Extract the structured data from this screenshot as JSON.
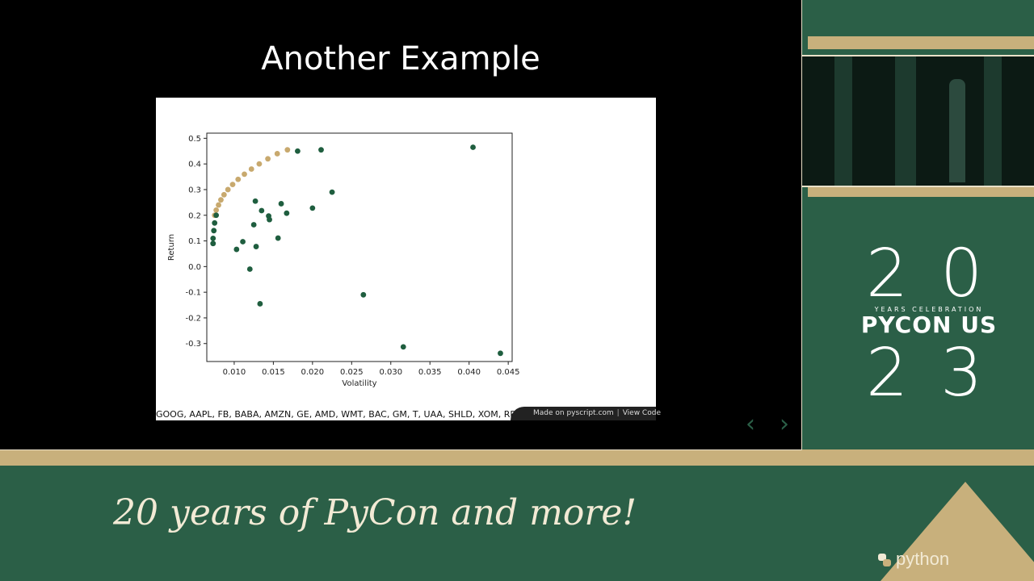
{
  "slide": {
    "title": "Another Example"
  },
  "figure": {
    "ticker_text": "GOOG, AAPL, FB, BABA, AMZN, GE, AMD, WMT, BAC, GM, T, UAA, SHLD, XOM, RRC, B",
    "badge_made_on": "Made on pyscript.com",
    "badge_view_code": "View Code"
  },
  "chart_data": {
    "type": "scatter",
    "xlabel": "Volatility",
    "ylabel": "Return",
    "xlim": [
      0.0065,
      0.0455
    ],
    "ylim": [
      -0.37,
      0.52
    ],
    "xticks": [
      0.01,
      0.015,
      0.02,
      0.025,
      0.03,
      0.035,
      0.04,
      0.045
    ],
    "xtick_labels": [
      "0.010",
      "0.015",
      "0.020",
      "0.025",
      "0.030",
      "0.035",
      "0.040",
      "0.045"
    ],
    "yticks": [
      -0.3,
      -0.2,
      -0.1,
      0.0,
      0.1,
      0.2,
      0.3,
      0.4,
      0.5
    ],
    "ytick_labels": [
      "-0.3",
      "-0.2",
      "-0.1",
      "0.0",
      "0.1",
      "0.2",
      "0.3",
      "0.4",
      "0.5"
    ],
    "series": [
      {
        "name": "",
        "color": "#c8a96e",
        "x": [
          0.0075,
          0.0077,
          0.008,
          0.0083,
          0.0087,
          0.0092,
          0.0098,
          0.0105,
          0.0113,
          0.0122,
          0.0132,
          0.0143,
          0.0155,
          0.0168
        ],
        "y": [
          0.2,
          0.22,
          0.24,
          0.26,
          0.28,
          0.3,
          0.32,
          0.34,
          0.36,
          0.38,
          0.4,
          0.42,
          0.44,
          0.455
        ]
      },
      {
        "name": "",
        "color": "#1f5e3f",
        "x": [
          0.0073,
          0.0073,
          0.0074,
          0.0075,
          0.0077
        ],
        "y": [
          0.09,
          0.11,
          0.14,
          0.17,
          0.2
        ]
      },
      {
        "name": "",
        "color": "#1f5e3f",
        "x": [
          0.0073,
          0.0103,
          0.0111,
          0.012,
          0.0125,
          0.0127,
          0.0128,
          0.0133,
          0.0135,
          0.0144,
          0.0145,
          0.0156,
          0.016,
          0.0167,
          0.0181,
          0.02,
          0.0211,
          0.0225,
          0.0265,
          0.0316,
          0.0405,
          0.044
        ],
        "y": [
          0.09,
          0.067,
          0.097,
          -0.01,
          0.163,
          0.255,
          0.078,
          -0.145,
          0.218,
          0.197,
          0.183,
          0.111,
          0.245,
          0.208,
          0.45,
          0.228,
          0.455,
          0.29,
          -0.11,
          -0.313,
          0.465,
          -0.338
        ]
      }
    ],
    "grid": false,
    "legend": "none"
  },
  "logo": {
    "top_digits": "20",
    "years_text": "YEARS CELEBRATION",
    "event_name": "PYCON US",
    "bottom_digits": "23"
  },
  "footer": {
    "tagline": "20 years of PyCon and more!",
    "brand": "python"
  },
  "colors": {
    "brand_green": "#2b5f47",
    "gold": "#c8b07c"
  },
  "icons": {
    "prev": "chevron-left-icon",
    "next": "chevron-right-icon"
  }
}
